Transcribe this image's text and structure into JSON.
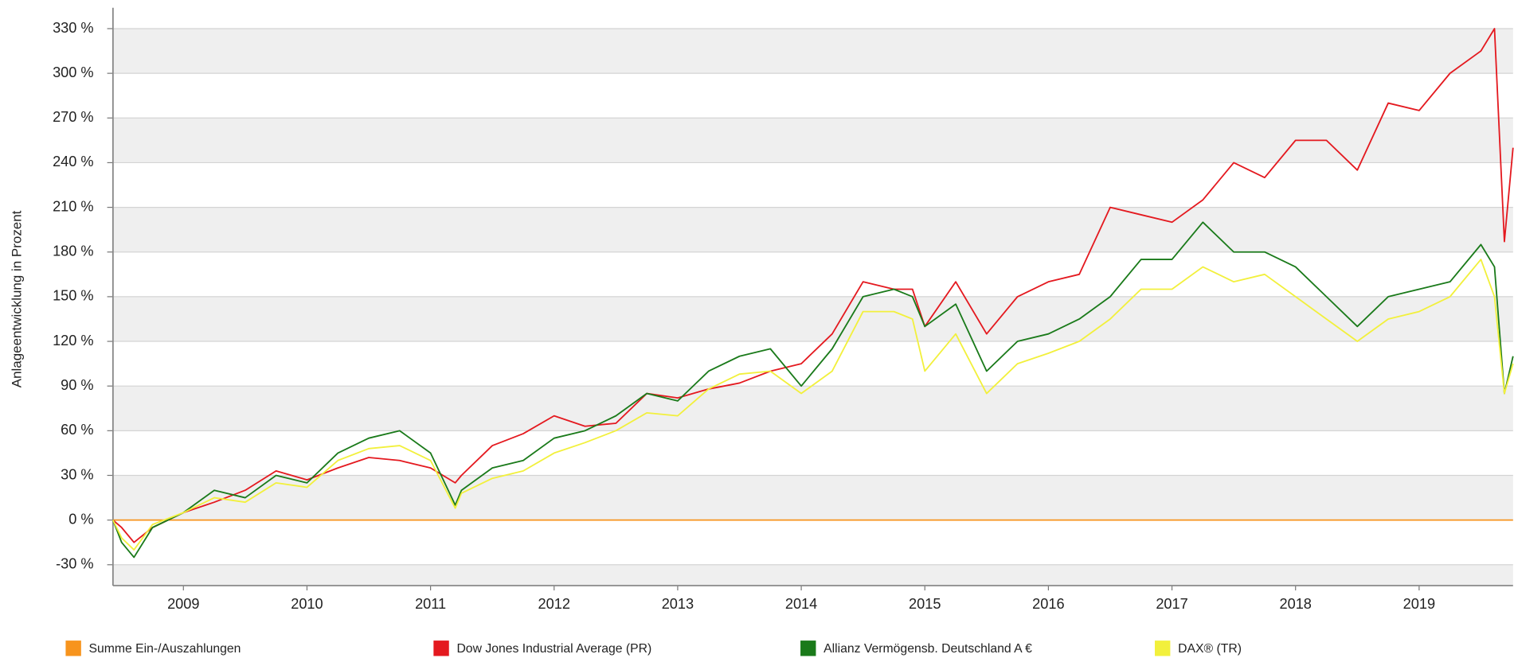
{
  "chart_data": {
    "type": "line",
    "ylabel": "Anlageentwicklung  in Prozent",
    "x": [
      2008.93,
      2009.0,
      2009.1,
      2009.25,
      2009.5,
      2009.75,
      2010.0,
      2010.25,
      2010.5,
      2010.75,
      2011.0,
      2011.25,
      2011.5,
      2011.7,
      2011.75,
      2012.0,
      2012.25,
      2012.5,
      2012.75,
      2013.0,
      2013.25,
      2013.5,
      2013.75,
      2014.0,
      2014.25,
      2014.5,
      2014.75,
      2015.0,
      2015.25,
      2015.4,
      2015.5,
      2015.75,
      2016.0,
      2016.25,
      2016.5,
      2016.75,
      2017.0,
      2017.25,
      2017.5,
      2017.75,
      2018.0,
      2018.25,
      2018.5,
      2018.75,
      2019.0,
      2019.25,
      2019.5,
      2019.75,
      2020.0,
      2020.11,
      2020.19,
      2020.26
    ],
    "series": [
      {
        "name": "Summe Ein-/Auszahlungen",
        "color": "#f7941d",
        "values": [
          0,
          0,
          0,
          0,
          0,
          0,
          0,
          0,
          0,
          0,
          0,
          0,
          0,
          0,
          0,
          0,
          0,
          0,
          0,
          0,
          0,
          0,
          0,
          0,
          0,
          0,
          0,
          0,
          0,
          0,
          0,
          0,
          0,
          0,
          0,
          0,
          0,
          0,
          0,
          0,
          0,
          0,
          0,
          0,
          0,
          0,
          0,
          0,
          0,
          0,
          0,
          0
        ]
      },
      {
        "name": "Dow Jones Industrial Average (PR)",
        "color": "#e4191f",
        "values": [
          0,
          -5,
          -15,
          -5,
          5,
          12,
          20,
          33,
          27,
          35,
          42,
          40,
          35,
          25,
          30,
          50,
          58,
          70,
          63,
          65,
          85,
          82,
          88,
          92,
          100,
          105,
          125,
          160,
          155,
          155,
          130,
          160,
          125,
          150,
          160,
          165,
          210,
          205,
          200,
          215,
          240,
          230,
          255,
          255,
          235,
          280,
          275,
          300,
          315,
          330,
          187,
          250
        ]
      },
      {
        "name": "Allianz Vermögensb. Deutschland A €",
        "color": "#1a7a1a",
        "values": [
          0,
          -15,
          -25,
          -5,
          5,
          20,
          15,
          30,
          25,
          45,
          55,
          60,
          45,
          10,
          20,
          35,
          40,
          55,
          60,
          70,
          85,
          80,
          100,
          110,
          115,
          90,
          115,
          150,
          155,
          150,
          130,
          145,
          100,
          120,
          125,
          135,
          150,
          175,
          175,
          200,
          180,
          180,
          170,
          150,
          130,
          150,
          155,
          160,
          185,
          170,
          85,
          110
        ]
      },
      {
        "name": "DAX® (TR)",
        "color": "#f2f03c",
        "values": [
          0,
          -12,
          -20,
          -3,
          5,
          15,
          12,
          25,
          22,
          40,
          48,
          50,
          40,
          8,
          18,
          28,
          33,
          45,
          52,
          60,
          72,
          70,
          88,
          98,
          100,
          85,
          100,
          140,
          140,
          135,
          100,
          125,
          85,
          105,
          112,
          120,
          135,
          155,
          155,
          170,
          160,
          165,
          150,
          135,
          120,
          135,
          140,
          150,
          175,
          150,
          85,
          105
        ]
      }
    ],
    "xlim": [
      2008.93,
      2020.26
    ],
    "xticks": [
      {
        "value": 2009.5,
        "label": "2009"
      },
      {
        "value": 2010.5,
        "label": "2010"
      },
      {
        "value": 2011.5,
        "label": "2011"
      },
      {
        "value": 2012.5,
        "label": "2012"
      },
      {
        "value": 2013.5,
        "label": "2013"
      },
      {
        "value": 2014.5,
        "label": "2014"
      },
      {
        "value": 2015.5,
        "label": "2015"
      },
      {
        "value": 2016.5,
        "label": "2016"
      },
      {
        "value": 2017.5,
        "label": "2017"
      },
      {
        "value": 2018.5,
        "label": "2018"
      },
      {
        "value": 2019.5,
        "label": "2019"
      }
    ],
    "ylim": [
      -44,
      344
    ],
    "yticks": [
      {
        "value": -30,
        "label": "-30 %"
      },
      {
        "value": 0,
        "label": "0 %"
      },
      {
        "value": 30,
        "label": "30 %"
      },
      {
        "value": 60,
        "label": "60 %"
      },
      {
        "value": 90,
        "label": "90 %"
      },
      {
        "value": 120,
        "label": "120 %"
      },
      {
        "value": 150,
        "label": "150 %"
      },
      {
        "value": 180,
        "label": "180 %"
      },
      {
        "value": 210,
        "label": "210 %"
      },
      {
        "value": 240,
        "label": "240 %"
      },
      {
        "value": 270,
        "label": "270 %"
      },
      {
        "value": 300,
        "label": "300 %"
      },
      {
        "value": 330,
        "label": "330 %"
      }
    ],
    "grid": true,
    "legend": "bottom"
  }
}
